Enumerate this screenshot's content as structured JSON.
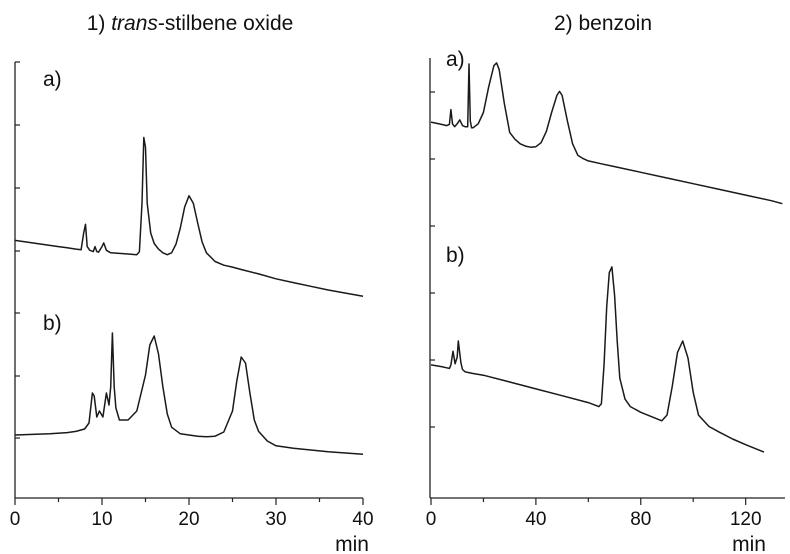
{
  "chart_data": [
    {
      "type": "line",
      "title_prefix": "1) ",
      "title_italic": "trans",
      "title_rest": "-stilbene oxide",
      "xlabel": "min",
      "ylabel": "",
      "xlim": [
        0,
        40
      ],
      "x_ticks": [
        0,
        10,
        20,
        30,
        40
      ],
      "x_tick_labels": [
        "0",
        "10",
        "20",
        "30",
        "40"
      ],
      "grid": false,
      "legend": "none",
      "series": [
        {
          "name": "a)",
          "x": [
            0,
            1,
            2,
            3,
            4,
            5,
            6,
            7,
            7.6,
            7.9,
            8.1,
            8.3,
            8.6,
            9,
            9.2,
            9.4,
            9.6,
            10,
            10.2,
            10.5,
            11,
            12,
            13,
            14,
            14.3,
            14.6,
            14.8,
            15,
            15.2,
            15.6,
            16,
            16.5,
            17,
            17.5,
            18,
            18.5,
            19,
            19.5,
            20,
            20.5,
            21,
            21.5,
            22,
            23,
            24,
            25,
            26,
            28,
            30,
            32,
            34,
            36,
            38,
            40
          ],
          "y": [
            0.8,
            0.78,
            0.76,
            0.74,
            0.72,
            0.7,
            0.68,
            0.66,
            0.65,
            0.92,
            1.06,
            0.7,
            0.64,
            0.62,
            0.7,
            0.62,
            0.61,
            0.7,
            0.76,
            0.64,
            0.6,
            0.59,
            0.58,
            0.57,
            0.62,
            1.4,
            2.46,
            2.3,
            1.4,
            0.92,
            0.75,
            0.66,
            0.6,
            0.57,
            0.6,
            0.74,
            1.0,
            1.34,
            1.52,
            1.4,
            1.08,
            0.78,
            0.6,
            0.46,
            0.4,
            0.37,
            0.33,
            0.26,
            0.18,
            0.12,
            0.06,
            0.0,
            -0.05,
            -0.1
          ]
        },
        {
          "name": "b)",
          "x": [
            0,
            2,
            4,
            6,
            7,
            8,
            8.5,
            8.9,
            9.1,
            9.4,
            9.7,
            10.1,
            10.5,
            10.8,
            11,
            11.2,
            11.4,
            11.6,
            12,
            13,
            14,
            15,
            15.5,
            16,
            16.5,
            17,
            17.5,
            18,
            19,
            20,
            21,
            22,
            23,
            24,
            25,
            25.5,
            26,
            26.5,
            27,
            27.5,
            28,
            29,
            30,
            32,
            34,
            36,
            38,
            40
          ],
          "y": [
            0,
            0.01,
            0.02,
            0.04,
            0.06,
            0.1,
            0.2,
            0.7,
            0.65,
            0.3,
            0.4,
            0.3,
            0.7,
            0.5,
            0.8,
            1.7,
            0.8,
            0.45,
            0.25,
            0.25,
            0.4,
            1.0,
            1.5,
            1.65,
            1.35,
            0.8,
            0.35,
            0.13,
            0.02,
            0,
            -0.02,
            -0.03,
            -0.02,
            0.05,
            0.4,
            0.9,
            1.3,
            1.2,
            0.7,
            0.25,
            0.06,
            -0.1,
            -0.18,
            -0.22,
            -0.25,
            -0.28,
            -0.3,
            -0.32
          ]
        }
      ]
    },
    {
      "type": "line",
      "title_prefix": "2) benzoin",
      "title_italic": "",
      "title_rest": "",
      "xlabel": "min",
      "ylabel": "",
      "xlim": [
        0,
        135
      ],
      "x_ticks": [
        0,
        40,
        80,
        120
      ],
      "x_tick_labels": [
        "0",
        "40",
        "80",
        "120"
      ],
      "grid": false,
      "legend": "none",
      "series": [
        {
          "name": "a)",
          "x": [
            0,
            4,
            6,
            7,
            7.6,
            8.2,
            9,
            10,
            11,
            12,
            13,
            14,
            14.5,
            15,
            15.5,
            16,
            18,
            20,
            22,
            24,
            25,
            26,
            28,
            30,
            32,
            34,
            36,
            38,
            40,
            42,
            44,
            46,
            48,
            49,
            50,
            52,
            54,
            56,
            58,
            60,
            65,
            70,
            80,
            90,
            100,
            110,
            120,
            130,
            134
          ],
          "y": [
            0.98,
            0.94,
            0.92,
            0.94,
            1.2,
            0.95,
            0.9,
            0.95,
            1.02,
            0.92,
            0.9,
            0.9,
            2.0,
            1.0,
            0.88,
            0.88,
            0.95,
            1.15,
            1.6,
            1.97,
            2.02,
            1.9,
            1.3,
            0.8,
            0.68,
            0.6,
            0.56,
            0.54,
            0.55,
            0.62,
            0.82,
            1.15,
            1.45,
            1.52,
            1.45,
            1.0,
            0.6,
            0.4,
            0.34,
            0.3,
            0.25,
            0.2,
            0.1,
            0.0,
            -0.1,
            -0.2,
            -0.3,
            -0.4,
            -0.45
          ]
        },
        {
          "name": "b)",
          "x": [
            0,
            4,
            6,
            7,
            7.6,
            8.4,
            9.2,
            10,
            10.4,
            11.4,
            12,
            13,
            14,
            16,
            20,
            30,
            40,
            50,
            60,
            64,
            65,
            66,
            67,
            68,
            69,
            70,
            71,
            72,
            74,
            76,
            80,
            88,
            90,
            92,
            94,
            96,
            98,
            100,
            102,
            106,
            110,
            115,
            120,
            127
          ],
          "y": [
            0.58,
            0.55,
            0.53,
            0.52,
            0.58,
            0.82,
            0.6,
            0.72,
            1.0,
            0.62,
            0.5,
            0.46,
            0.45,
            0.43,
            0.4,
            0.28,
            0.16,
            0.04,
            -0.08,
            -0.15,
            -0.1,
            0.6,
            1.6,
            2.2,
            2.3,
            1.8,
            1.0,
            0.35,
            -0.02,
            -0.15,
            -0.25,
            -0.4,
            -0.3,
            0.2,
            0.8,
            1.0,
            0.7,
            0.1,
            -0.3,
            -0.5,
            -0.6,
            -0.72,
            -0.82,
            -0.95
          ]
        }
      ]
    }
  ]
}
